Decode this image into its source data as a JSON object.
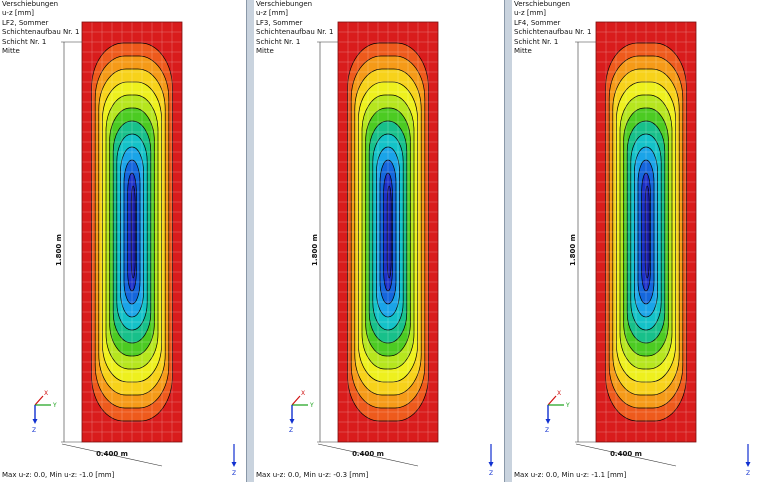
{
  "panels": [
    {
      "title": "Verschiebungen",
      "quantity": "u-z [mm]",
      "load_case": "LF2, Sommer",
      "layer_structure": "Schichtenaufbau Nr. 1",
      "layer": "Schicht Nr. 1",
      "position": "Mitte",
      "dim_height": "1.800 m",
      "dim_width": "0.400 m",
      "axis_x": "X",
      "axis_y": "Y",
      "axis_z": "Z",
      "summary": "Max u-z: 0.0, Min u-z: -1.0 [mm]"
    },
    {
      "title": "Verschiebungen",
      "quantity": "u-z [mm]",
      "load_case": "LF3, Sommer",
      "layer_structure": "Schichtenaufbau Nr. 1",
      "layer": "Schicht Nr. 1",
      "position": "Mitte",
      "dim_height": "1.800 m",
      "dim_width": "0.400 m",
      "axis_x": "X",
      "axis_y": "Y",
      "axis_z": "Z",
      "summary": "Max u-z: 0.0, Min u-z: -0.3 [mm]"
    },
    {
      "title": "Verschiebungen",
      "quantity": "u-z [mm]",
      "load_case": "LF4, Sommer",
      "layer_structure": "Schichtenaufbau Nr. 1",
      "layer": "Schicht Nr. 1",
      "position": "Mitte",
      "dim_height": "1.800 m",
      "dim_width": "0.400 m",
      "axis_x": "X",
      "axis_y": "Y",
      "axis_z": "Z",
      "summary": "Max u-z: 0.0, Min u-z: -1.1 [mm]"
    }
  ],
  "contour_colors": [
    "#d91c1c",
    "#ee5a1c",
    "#f59a18",
    "#f7d21a",
    "#eef01e",
    "#b6e61e",
    "#4ccb22",
    "#18c08a",
    "#14c2c8",
    "#1aa4e8",
    "#1466dc",
    "#1c2fc8",
    "#1a1fb0"
  ],
  "colors": {
    "separator": "#c9d3de",
    "axis_x": "#d01010",
    "axis_y": "#18a018",
    "axis_z": "#1030d0",
    "mesh": "#ffffff",
    "outline": "#000000"
  }
}
